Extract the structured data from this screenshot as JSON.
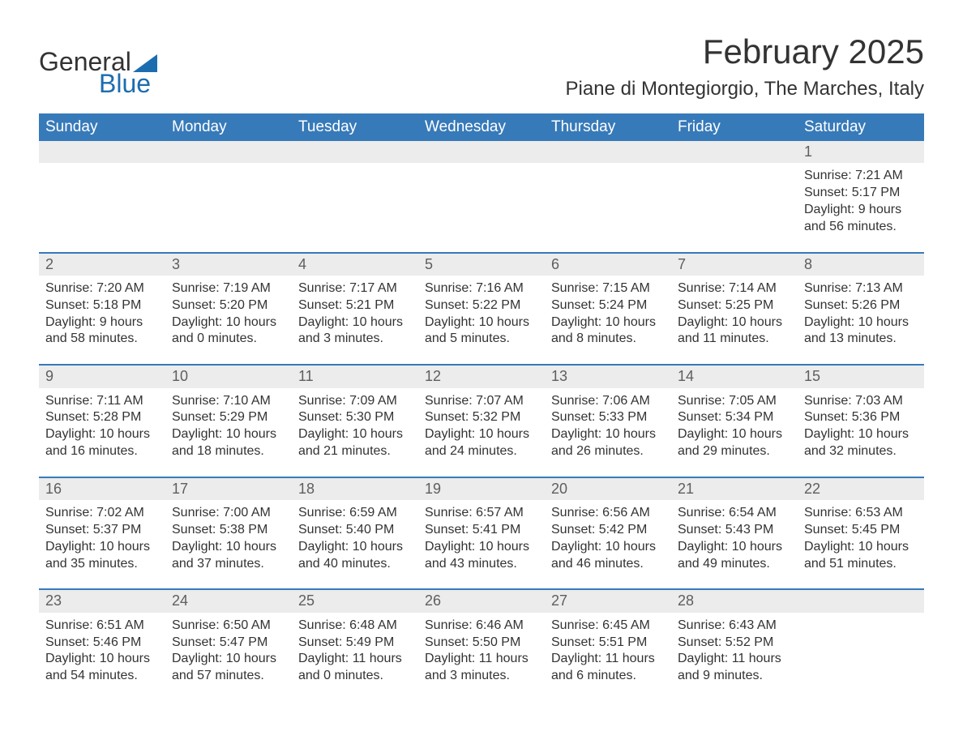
{
  "logo": {
    "word1": "General",
    "word2": "Blue",
    "sail_color": "#1c6db0",
    "text_color": "#333333"
  },
  "title": "February 2025",
  "location": "Piane di Montegiorgio, The Marches, Italy",
  "colors": {
    "header_bg": "#377ab9",
    "header_text": "#ffffff",
    "daynum_bg": "#ececec",
    "daynum_text": "#5e5e5e",
    "body_text": "#333333",
    "separator": "#377ab9",
    "page_bg": "#ffffff"
  },
  "typography": {
    "title_fontsize": 42,
    "location_fontsize": 24,
    "dayheader_fontsize": 19,
    "daynum_fontsize": 18,
    "cell_fontsize": 16,
    "logo_fontsize": 32,
    "font_family": "Segoe UI, Arial, sans-serif"
  },
  "day_headers": [
    "Sunday",
    "Monday",
    "Tuesday",
    "Wednesday",
    "Thursday",
    "Friday",
    "Saturday"
  ],
  "weeks": [
    [
      null,
      null,
      null,
      null,
      null,
      null,
      {
        "n": "1",
        "sunrise": "Sunrise: 7:21 AM",
        "sunset": "Sunset: 5:17 PM",
        "daylight": "Daylight: 9 hours and 56 minutes."
      }
    ],
    [
      {
        "n": "2",
        "sunrise": "Sunrise: 7:20 AM",
        "sunset": "Sunset: 5:18 PM",
        "daylight": "Daylight: 9 hours and 58 minutes."
      },
      {
        "n": "3",
        "sunrise": "Sunrise: 7:19 AM",
        "sunset": "Sunset: 5:20 PM",
        "daylight": "Daylight: 10 hours and 0 minutes."
      },
      {
        "n": "4",
        "sunrise": "Sunrise: 7:17 AM",
        "sunset": "Sunset: 5:21 PM",
        "daylight": "Daylight: 10 hours and 3 minutes."
      },
      {
        "n": "5",
        "sunrise": "Sunrise: 7:16 AM",
        "sunset": "Sunset: 5:22 PM",
        "daylight": "Daylight: 10 hours and 5 minutes."
      },
      {
        "n": "6",
        "sunrise": "Sunrise: 7:15 AM",
        "sunset": "Sunset: 5:24 PM",
        "daylight": "Daylight: 10 hours and 8 minutes."
      },
      {
        "n": "7",
        "sunrise": "Sunrise: 7:14 AM",
        "sunset": "Sunset: 5:25 PM",
        "daylight": "Daylight: 10 hours and 11 minutes."
      },
      {
        "n": "8",
        "sunrise": "Sunrise: 7:13 AM",
        "sunset": "Sunset: 5:26 PM",
        "daylight": "Daylight: 10 hours and 13 minutes."
      }
    ],
    [
      {
        "n": "9",
        "sunrise": "Sunrise: 7:11 AM",
        "sunset": "Sunset: 5:28 PM",
        "daylight": "Daylight: 10 hours and 16 minutes."
      },
      {
        "n": "10",
        "sunrise": "Sunrise: 7:10 AM",
        "sunset": "Sunset: 5:29 PM",
        "daylight": "Daylight: 10 hours and 18 minutes."
      },
      {
        "n": "11",
        "sunrise": "Sunrise: 7:09 AM",
        "sunset": "Sunset: 5:30 PM",
        "daylight": "Daylight: 10 hours and 21 minutes."
      },
      {
        "n": "12",
        "sunrise": "Sunrise: 7:07 AM",
        "sunset": "Sunset: 5:32 PM",
        "daylight": "Daylight: 10 hours and 24 minutes."
      },
      {
        "n": "13",
        "sunrise": "Sunrise: 7:06 AM",
        "sunset": "Sunset: 5:33 PM",
        "daylight": "Daylight: 10 hours and 26 minutes."
      },
      {
        "n": "14",
        "sunrise": "Sunrise: 7:05 AM",
        "sunset": "Sunset: 5:34 PM",
        "daylight": "Daylight: 10 hours and 29 minutes."
      },
      {
        "n": "15",
        "sunrise": "Sunrise: 7:03 AM",
        "sunset": "Sunset: 5:36 PM",
        "daylight": "Daylight: 10 hours and 32 minutes."
      }
    ],
    [
      {
        "n": "16",
        "sunrise": "Sunrise: 7:02 AM",
        "sunset": "Sunset: 5:37 PM",
        "daylight": "Daylight: 10 hours and 35 minutes."
      },
      {
        "n": "17",
        "sunrise": "Sunrise: 7:00 AM",
        "sunset": "Sunset: 5:38 PM",
        "daylight": "Daylight: 10 hours and 37 minutes."
      },
      {
        "n": "18",
        "sunrise": "Sunrise: 6:59 AM",
        "sunset": "Sunset: 5:40 PM",
        "daylight": "Daylight: 10 hours and 40 minutes."
      },
      {
        "n": "19",
        "sunrise": "Sunrise: 6:57 AM",
        "sunset": "Sunset: 5:41 PM",
        "daylight": "Daylight: 10 hours and 43 minutes."
      },
      {
        "n": "20",
        "sunrise": "Sunrise: 6:56 AM",
        "sunset": "Sunset: 5:42 PM",
        "daylight": "Daylight: 10 hours and 46 minutes."
      },
      {
        "n": "21",
        "sunrise": "Sunrise: 6:54 AM",
        "sunset": "Sunset: 5:43 PM",
        "daylight": "Daylight: 10 hours and 49 minutes."
      },
      {
        "n": "22",
        "sunrise": "Sunrise: 6:53 AM",
        "sunset": "Sunset: 5:45 PM",
        "daylight": "Daylight: 10 hours and 51 minutes."
      }
    ],
    [
      {
        "n": "23",
        "sunrise": "Sunrise: 6:51 AM",
        "sunset": "Sunset: 5:46 PM",
        "daylight": "Daylight: 10 hours and 54 minutes."
      },
      {
        "n": "24",
        "sunrise": "Sunrise: 6:50 AM",
        "sunset": "Sunset: 5:47 PM",
        "daylight": "Daylight: 10 hours and 57 minutes."
      },
      {
        "n": "25",
        "sunrise": "Sunrise: 6:48 AM",
        "sunset": "Sunset: 5:49 PM",
        "daylight": "Daylight: 11 hours and 0 minutes."
      },
      {
        "n": "26",
        "sunrise": "Sunrise: 6:46 AM",
        "sunset": "Sunset: 5:50 PM",
        "daylight": "Daylight: 11 hours and 3 minutes."
      },
      {
        "n": "27",
        "sunrise": "Sunrise: 6:45 AM",
        "sunset": "Sunset: 5:51 PM",
        "daylight": "Daylight: 11 hours and 6 minutes."
      },
      {
        "n": "28",
        "sunrise": "Sunrise: 6:43 AM",
        "sunset": "Sunset: 5:52 PM",
        "daylight": "Daylight: 11 hours and 9 minutes."
      },
      null
    ]
  ]
}
